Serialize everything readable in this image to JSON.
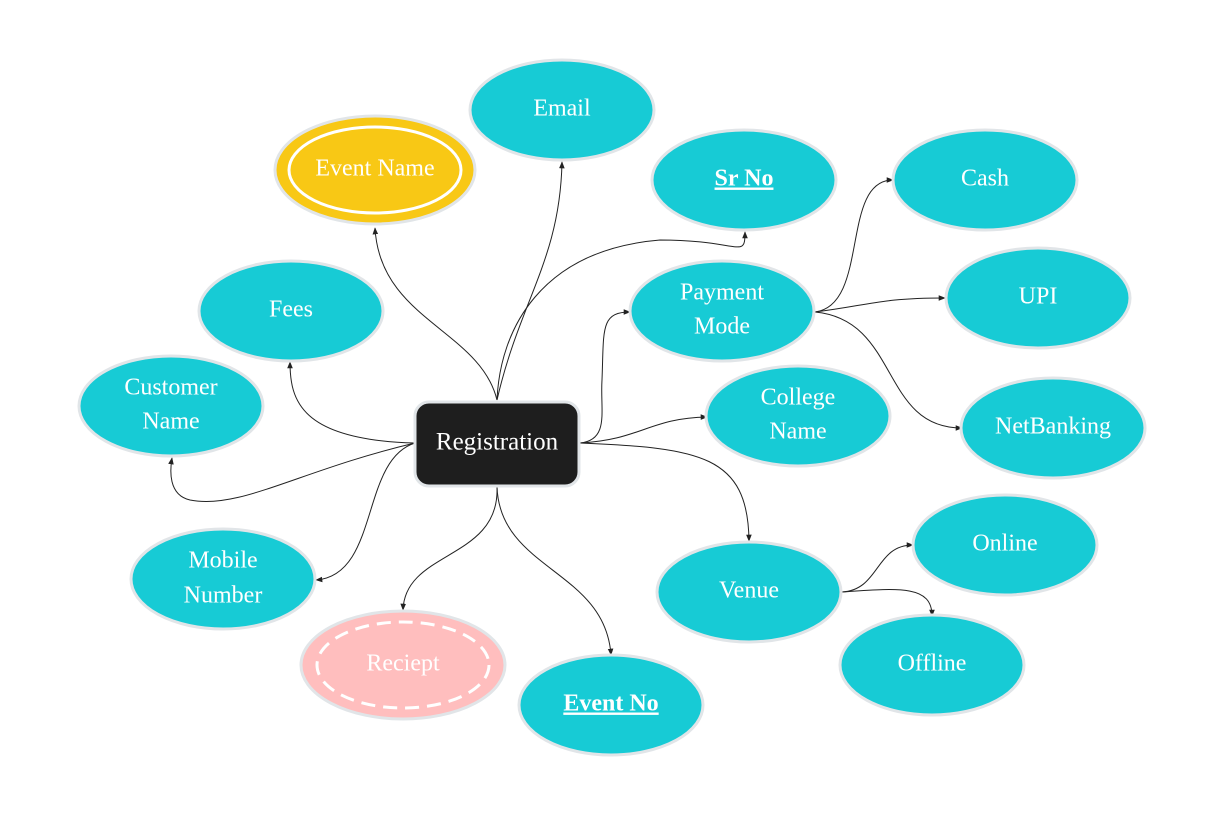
{
  "colors": {
    "attribute": "#17CBD5",
    "attribute_stroke": "#E1E5E8",
    "entity": "#1E1E1E",
    "multivalued": "#F8C815",
    "derived": "#FFBEBE",
    "text": "#FFFFFF",
    "edge": "#222222"
  },
  "center": {
    "label": "Registration"
  },
  "nodes": {
    "email": {
      "label": "Email"
    },
    "event_name": {
      "label": "Event Name"
    },
    "sr_no": {
      "label": "Sr No"
    },
    "fees": {
      "label": "Fees"
    },
    "payment_mode": {
      "line1": "Payment",
      "line2": "Mode"
    },
    "customer_name": {
      "line1": "Customer",
      "line2": "Name"
    },
    "college_name": {
      "line1": "College",
      "line2": "Name"
    },
    "mobile_number": {
      "line1": "Mobile",
      "line2": "Number"
    },
    "venue": {
      "label": "Venue"
    },
    "reciept": {
      "label": "Reciept"
    },
    "event_no": {
      "label": "Event No"
    },
    "cash": {
      "label": "Cash"
    },
    "upi": {
      "label": "UPI"
    },
    "netbanking": {
      "label": "NetBanking"
    },
    "online": {
      "label": "Online"
    },
    "offline": {
      "label": "Offline"
    }
  }
}
